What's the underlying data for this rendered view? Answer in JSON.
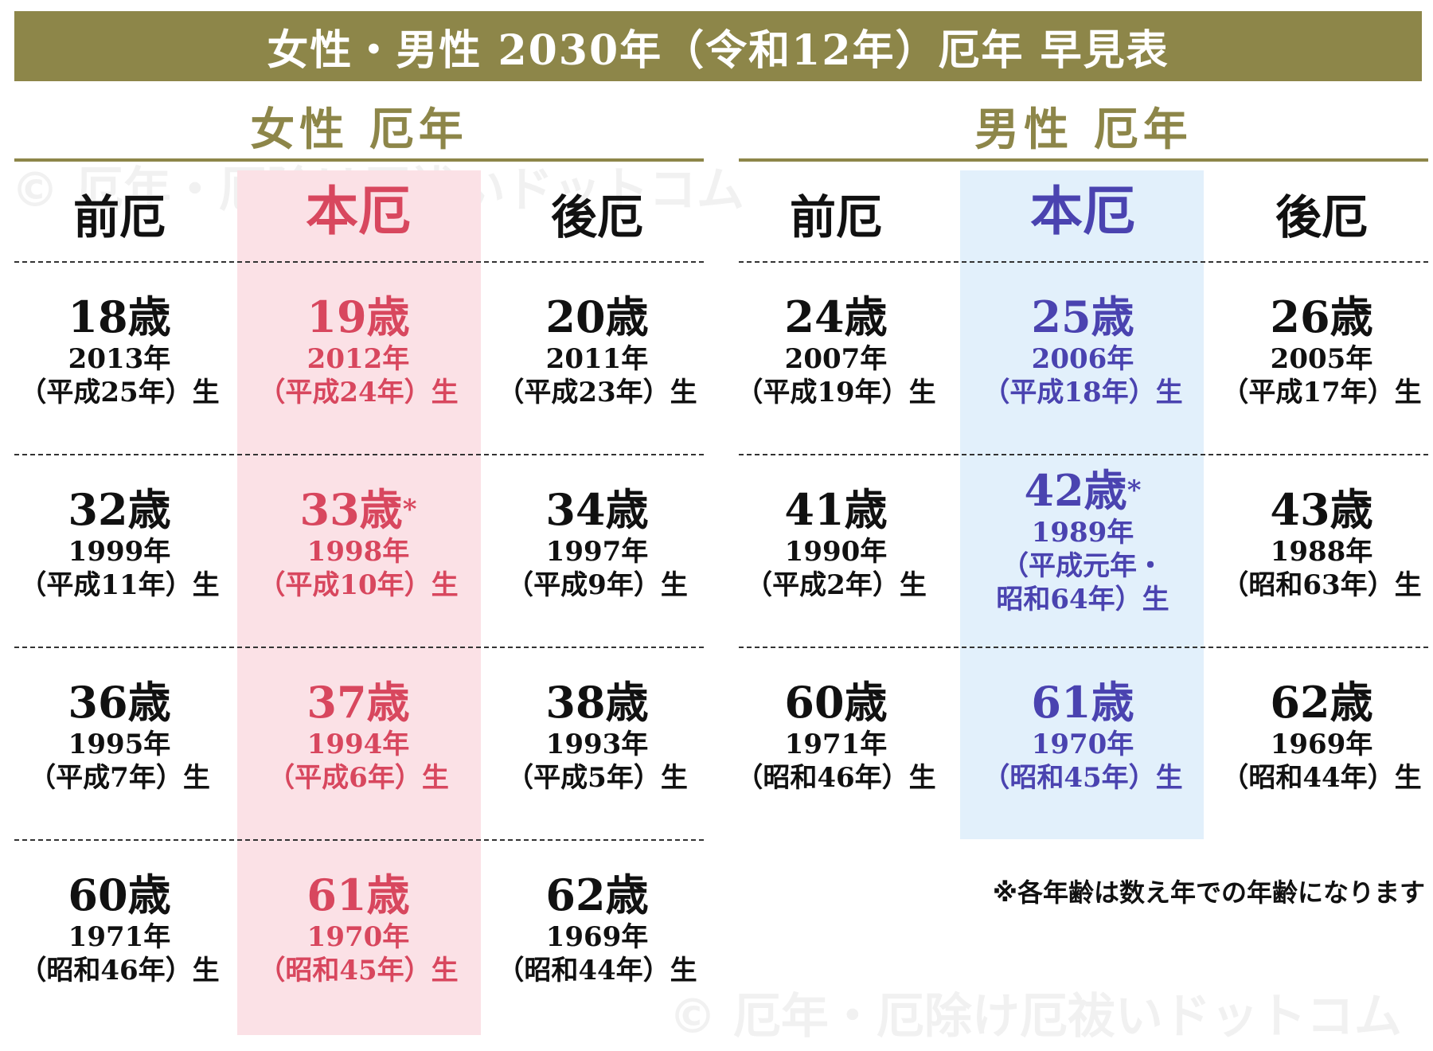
{
  "title": "女性・男性 2030年（令和12年）厄年 早見表",
  "watermark": "© 厄年・厄除け厄祓いドットコム",
  "colors": {
    "olive": "#8d8649",
    "pink": "#d8475e",
    "blue": "#4a43b0",
    "pink_band": "#fbe1e6",
    "blue_band": "#e2f0fb"
  },
  "female": {
    "title": "女性 厄年",
    "headers": [
      "前厄",
      "本厄",
      "後厄"
    ],
    "rows": [
      [
        {
          "age": "18歳",
          "year": "2013年",
          "era": "（平成25年）生"
        },
        {
          "age": "19歳",
          "year": "2012年",
          "era": "（平成24年）生"
        },
        {
          "age": "20歳",
          "year": "2011年",
          "era": "（平成23年）生"
        }
      ],
      [
        {
          "age": "32歳",
          "year": "1999年",
          "era": "（平成11年）生"
        },
        {
          "age": "33歳",
          "mark": "*",
          "year": "1998年",
          "era": "（平成10年）生"
        },
        {
          "age": "34歳",
          "year": "1997年",
          "era": "（平成9年）生"
        }
      ],
      [
        {
          "age": "36歳",
          "year": "1995年",
          "era": "（平成7年）生"
        },
        {
          "age": "37歳",
          "year": "1994年",
          "era": "（平成6年）生"
        },
        {
          "age": "38歳",
          "year": "1993年",
          "era": "（平成5年）生"
        }
      ],
      [
        {
          "age": "60歳",
          "year": "1971年",
          "era": "（昭和46年）生"
        },
        {
          "age": "61歳",
          "year": "1970年",
          "era": "（昭和45年）生"
        },
        {
          "age": "62歳",
          "year": "1969年",
          "era": "（昭和44年）生"
        }
      ]
    ]
  },
  "male": {
    "title": "男性 厄年",
    "headers": [
      "前厄",
      "本厄",
      "後厄"
    ],
    "rows": [
      [
        {
          "age": "24歳",
          "year": "2007年",
          "era": "（平成19年）生"
        },
        {
          "age": "25歳",
          "year": "2006年",
          "era": "（平成18年）生"
        },
        {
          "age": "26歳",
          "year": "2005年",
          "era": "（平成17年）生"
        }
      ],
      [
        {
          "age": "41歳",
          "year": "1990年",
          "era": "（平成2年）生"
        },
        {
          "age": "42歳",
          "mark": "*",
          "year": "1989年",
          "era": "（平成元年・",
          "era2": "昭和64年）生"
        },
        {
          "age": "43歳",
          "year": "1988年",
          "era": "（昭和63年）生"
        }
      ],
      [
        {
          "age": "60歳",
          "year": "1971年",
          "era": "（昭和46年）生"
        },
        {
          "age": "61歳",
          "year": "1970年",
          "era": "（昭和45年）生"
        },
        {
          "age": "62歳",
          "year": "1969年",
          "era": "（昭和44年）生"
        }
      ]
    ]
  },
  "note": "※各年齢は数え年での年齢になります"
}
